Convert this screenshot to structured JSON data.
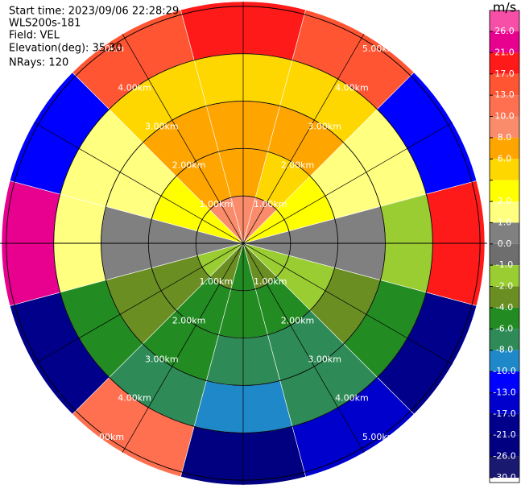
{
  "chart_data": {
    "type": "ppi",
    "annotations": [
      "Start time: 2023/09/06 22:28:29",
      "WLS200s-181",
      "Field: VEL",
      "Elevation(deg): 35.30",
      "NRays: 120"
    ],
    "rlim": [
      0,
      5.1
    ],
    "rticks": [
      {
        "value": 1,
        "label": "1.00km"
      },
      {
        "value": 2,
        "label": "2.00km"
      },
      {
        "value": 3,
        "label": "3.00km"
      },
      {
        "value": 4,
        "label": "4.00km"
      },
      {
        "value": 5,
        "label": "5.00km"
      }
    ],
    "azimuths": [
      0,
      30,
      60,
      90,
      120,
      150,
      180,
      210,
      240,
      270,
      300,
      330
    ],
    "values": [
      [
        10,
        8,
        7,
        5,
        20
      ],
      [
        9,
        5,
        7,
        5,
        15
      ],
      [
        3,
        3,
        1.5,
        1.5,
        -12
      ],
      [
        0.5,
        0.5,
        0.5,
        -1,
        18
      ],
      [
        -1.5,
        -1.5,
        -3,
        -5,
        -20
      ],
      [
        -3,
        -5,
        -7,
        -7,
        -15
      ],
      [
        -5,
        -5,
        -7,
        -9,
        -25
      ],
      [
        -3,
        -5,
        -5,
        -7,
        12
      ],
      [
        -1.5,
        -3,
        -3,
        -5,
        -18
      ],
      [
        0.5,
        0.5,
        0.5,
        1.5,
        22
      ],
      [
        3,
        3,
        1.5,
        1.5,
        -10
      ],
      [
        9,
        7,
        7,
        5,
        14
      ]
    ],
    "colorbar": {
      "label": "m/s",
      "ticks": [
        {
          "value": 26,
          "label": "26.0"
        },
        {
          "value": 21,
          "label": "21.0"
        },
        {
          "value": 17,
          "label": "17.0"
        },
        {
          "value": 13,
          "label": "13.0"
        },
        {
          "value": 10,
          "label": "10.0"
        },
        {
          "value": 8,
          "label": "8.0"
        },
        {
          "value": 6,
          "label": "6.0"
        },
        {
          "value": 4,
          "label": null
        },
        {
          "value": 2,
          "label": "2.0"
        },
        {
          "value": 1,
          "label": "1.0"
        },
        {
          "value": 0,
          "label": "0.0"
        },
        {
          "value": -1,
          "label": "-1.0"
        },
        {
          "value": -2,
          "label": "-2.0"
        },
        {
          "value": -4,
          "label": "-4.0"
        },
        {
          "value": -6,
          "label": "-6.0"
        },
        {
          "value": -8,
          "label": "-8.0"
        },
        {
          "value": -10,
          "label": "-10.0"
        },
        {
          "value": -13,
          "label": "-13.0"
        },
        {
          "value": -17,
          "label": "-17.0"
        },
        {
          "value": -21,
          "label": "-21.0"
        },
        {
          "value": -26,
          "label": "-26.0"
        },
        {
          "value": -30,
          "label": "-30.0"
        }
      ],
      "colors": [
        "#f74fa8",
        "#e8008f",
        "#ff1a1a",
        "#ff5533",
        "#ff7050",
        "#fa8c6c",
        "#ffa500",
        "#ffd700",
        "#ffff00",
        "#ffff80",
        "#808080",
        "#6e6e6e",
        "#9acd32",
        "#6b8e23",
        "#228b22",
        "#2e8b57",
        "#1e88c8",
        "#0000ff",
        "#0000cd",
        "#00008b",
        "#000080",
        "#191970"
      ]
    }
  }
}
